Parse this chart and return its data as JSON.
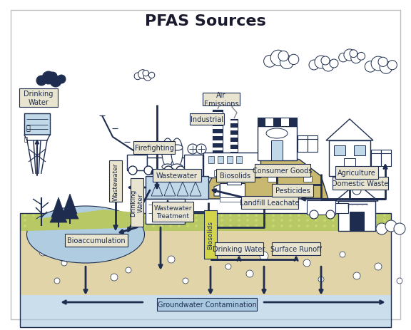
{
  "title": "PFAS Sources",
  "title_fontsize": 16,
  "background_color": "#ffffff",
  "outline_color": "#1e2d4f",
  "label_bg_light": "#e8e4d0",
  "label_bg_yellow": "#d4d44a",
  "green_ground": "#b8c864",
  "green_ground2": "#c8d870",
  "sand_color": "#e0d4a8",
  "water_color": "#c0d8e8",
  "water_deep": "#a8c8e0",
  "water_lake": "#b0cce0",
  "dark_fill": "#1e2d4f",
  "arrow_color": "#1e2d4f",
  "arrow_lw": 2.0,
  "labels": {
    "drinking_water_top": "Drinking\nWater",
    "firefighting": "Firefighting",
    "air_emissions": "Air\nEmissions",
    "industrial": "Industrial",
    "consumer_goods": "Consumer Goods",
    "domestic_waste": "Domestic Waste",
    "wastewater_h": "Wastewater",
    "wastewater_v": "Wastewater",
    "wastewater_treatment": "Wastewater\nTreatment",
    "biosolids_h": "Biosolids",
    "biosolids_v": "Biosolids",
    "landfill_leachate": "Landfill Leachate",
    "agriculture": "Agriculture",
    "pesticides": "Pesticides",
    "drinking_water_bot": "Drinking Water",
    "surface_runoff": "Surface Runoff",
    "drinking_water_v": "Drinking\nWater",
    "bioaccumulation": "Bioaccumulation",
    "groundwater": "Groundwater Contamination"
  }
}
